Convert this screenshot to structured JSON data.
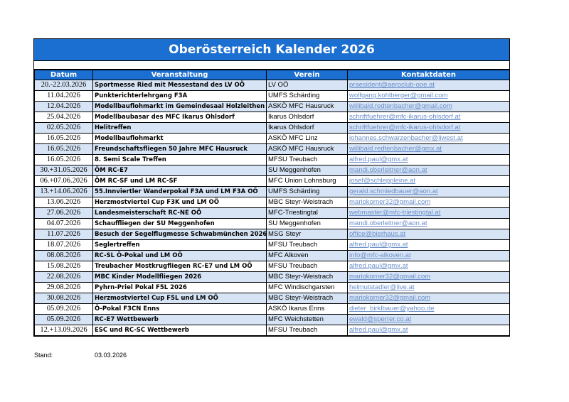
{
  "title": "Oberösterreich Kalender 2026",
  "headers": [
    "Datum",
    "Veranstaltung",
    "Verein",
    "Kontaktdaten"
  ],
  "rows": [
    {
      "date": "20.-22.03.2026",
      "event": "Sportmesse Ried mit Messestand des LV OÖ",
      "club": "LV OÖ",
      "contact": "praesident@aeroclub-ooe.at"
    },
    {
      "date": "11.04.2026",
      "event": "Punkterichterlehrgang F3A",
      "club": "UMFS Schärding",
      "contact": "wolfgang.kohlberger@gmail.com"
    },
    {
      "date": "12.04.2026",
      "event": "Modellbauflohmarkt im Gemeindesaal Holzleithen",
      "club": "ASKÖ MFC Hausruck",
      "contact": "willibald.redtenbacher@gmail.com"
    },
    {
      "date": "25.04.2026",
      "event": "Modellbaubasar des MFC Ikarus Ohlsdorf",
      "club": "Ikarus Ohlsdorf",
      "contact": "schriftfuehrer@mfc-ikarus-ohlsdorf.at"
    },
    {
      "date": "02.05.2026",
      "event": "Helitreffen",
      "club": "Ikarus Ohlsdorf",
      "contact": "schriftfuehrer@mfc-ikarus-ohlsdorf.at"
    },
    {
      "date": "16.05.2026",
      "event": "Modellbauflohmarkt",
      "club": "ASKÖ MFC Linz",
      "contact": "johannes.schwarzenbacher@liwest.at"
    },
    {
      "date": "16.05.2026",
      "event": "Freundschaftsfliegen 50 Jahre MFC Hausruck",
      "club": "ASKÖ MFC Hausruck",
      "contact": "willibald.redtenbacher@gmx.at"
    },
    {
      "date": "16.05.2026",
      "event": "8. Semi Scale Treffen",
      "club": "MFSU Treubach",
      "contact": "alfred.paul@gmx.at"
    },
    {
      "date": "30.+31.05.2026",
      "event": "ÖM RC-E7",
      "club": "SU Meggenhofen",
      "contact": "mandi.oberleitner@aon.at"
    },
    {
      "date": "06.+07.06.2026",
      "event": "ÖM RC-SF und LM RC-SF",
      "club": "MFC Union Lohnsburg",
      "contact": "josef@schleppleine.at"
    },
    {
      "date": "13.+14.06.2026",
      "event": "55.Innviertler Wanderpokal F3A und LM F3A OÖ",
      "club": "UMFS Schärding",
      "contact": "gerald.schmiedbauer@aon.at"
    },
    {
      "date": "13.06.2026",
      "event": "Herzmostviertel Cup F3K und LM OÖ",
      "club": "MBC Steyr-Weistrach",
      "contact": "mariokorner32@gmail.com"
    },
    {
      "date": "27.06.2026",
      "event": "Landesmeisterschaft RC-NE OÖ",
      "club": "MFC-Triestingtal",
      "contact": "webmaster@mfc-triestingtal.at"
    },
    {
      "date": "04.07.2026",
      "event": "Schauffliegen der SU Meggenhofen",
      "club": "SU Meggenhofen",
      "contact": "mandi.oberleitner@aon.at"
    },
    {
      "date": "11.07.2026",
      "event": "Besuch der Segelflugmesse Schwabmünchen 2026",
      "club": "MSG Steyr",
      "contact": "office@bierhaus.at"
    },
    {
      "date": "18.07.2026",
      "event": "Seglertreffen",
      "club": "MFSU Treubach",
      "contact": "alfred.paul@gmx.at"
    },
    {
      "date": "08.08.2026",
      "event": "RC-SL Ö-Pokal und LM OÖ",
      "club": "MFC Alkoven",
      "contact": "info@mfc-alkoven.at"
    },
    {
      "date": "15.08.2026",
      "event": "Treubacher Mostkrugfliegen RC-E7 und LM OÖ",
      "club": "MFSU Treubach",
      "contact": "alfred.paul@gmx.at"
    },
    {
      "date": "22.08.2026",
      "event": "MBC Kinder Modellfliegen 2026",
      "club": "MBC Steyr-Weistrach",
      "contact": "mariokorner32@gmail.com"
    },
    {
      "date": "29.08.2026",
      "event": "Pyhrn-Priel Pokal F5L 2026",
      "club": "MFC Windischgarsten",
      "contact": "helmutstadler@live.at"
    },
    {
      "date": "30.08.2026",
      "event": "Herzmostviertel Cup F5L und LM OÖ",
      "club": "MBC Steyr-Weistrach",
      "contact": "mariokorner32@gmail.com"
    },
    {
      "date": "05.09.2026",
      "event": "Ö-Pokal F3CN Enns",
      "club": "ASKÖ Ikarus Enns",
      "contact": "dieter_birklbauer@yahoo.de"
    },
    {
      "date": "05.09.2026",
      "event": "RC-E7 Wettbewerb",
      "club": "MFC Weichstetten",
      "contact": "ewald@sperrer.co.at"
    },
    {
      "date": "12.+13.09.2026",
      "event": "ESC und RC-SC Wettbewerb",
      "club": "MFSU Treubach",
      "contact": "alfred.paul@gmx.at"
    }
  ],
  "footer": {
    "label": "Stand:",
    "value": "03.03.2026"
  }
}
